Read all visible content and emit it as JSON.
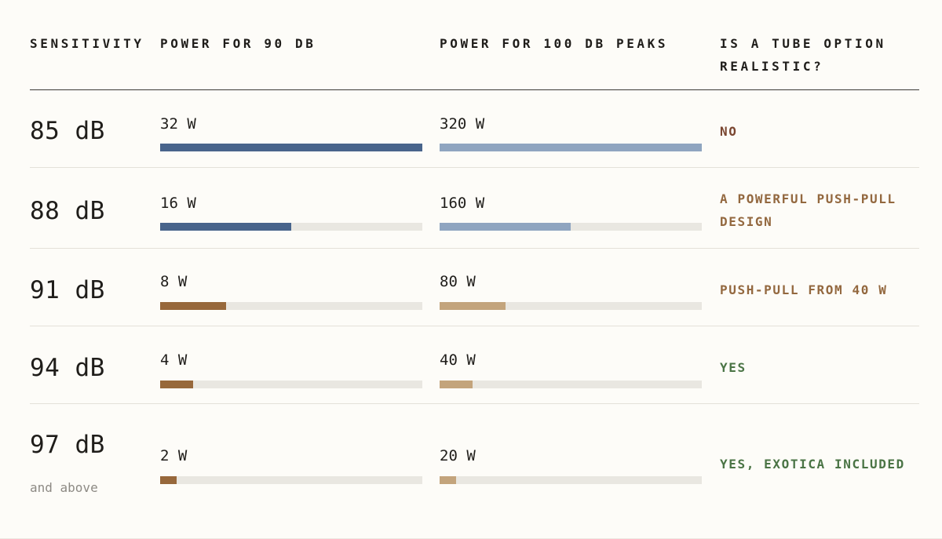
{
  "columns": {
    "sensitivity": "SENSITIVITY",
    "power90": "POWER FOR 90 DB",
    "power100": "POWER FOR 100 DB PEAKS",
    "tube": "IS A TUBE OPTION REALISTIC?"
  },
  "colors": {
    "blue_dark": "#48648b",
    "blue_light": "#8fa5c0",
    "brown_dark": "#97683b",
    "brown_light": "#c3a47c",
    "verdict_no": "#7a4630",
    "verdict_maybe": "#93683f",
    "verdict_yes": "#4a7445"
  },
  "rows": [
    {
      "sensitivity": "85 dB",
      "sub": "",
      "power90": "32 W",
      "power100": "320 W",
      "verdict": "NO"
    },
    {
      "sensitivity": "88 dB",
      "sub": "",
      "power90": "16 W",
      "power100": "160 W",
      "verdict": "A POWERFUL PUSH-PULL DESIGN"
    },
    {
      "sensitivity": "91 dB",
      "sub": "",
      "power90": "8 W",
      "power100": "80 W",
      "verdict": "PUSH-PULL FROM 40 W"
    },
    {
      "sensitivity": "94 dB",
      "sub": "",
      "power90": "4 W",
      "power100": "40 W",
      "verdict": "YES"
    },
    {
      "sensitivity": "97 dB",
      "sub": "and above",
      "power90": "2 W",
      "power100": "20 W",
      "verdict": "YES, EXOTICA INCLUDED"
    }
  ],
  "chart_data": {
    "type": "bar",
    "title": "",
    "categories": [
      "85 dB",
      "88 dB",
      "91 dB",
      "94 dB",
      "97 dB"
    ],
    "series": [
      {
        "name": "POWER FOR 90 DB",
        "values": [
          32,
          16,
          8,
          4,
          2
        ]
      },
      {
        "name": "POWER FOR 100 DB PEAKS",
        "values": [
          320,
          160,
          80,
          40,
          20
        ]
      }
    ],
    "xlabel": "",
    "ylabel": "",
    "grid": false,
    "legend": "none"
  }
}
